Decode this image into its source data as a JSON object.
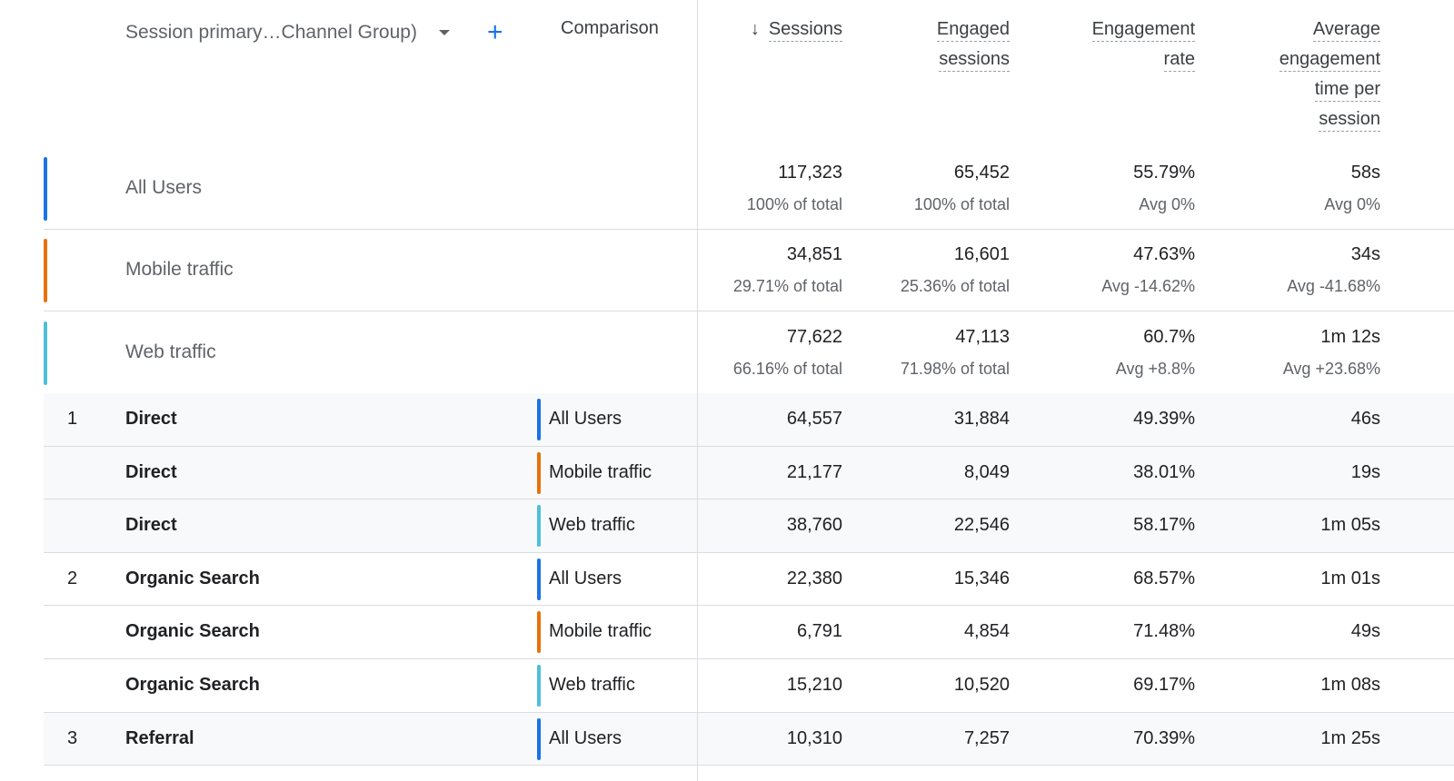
{
  "header": {
    "dimension": "Session primary…Channel Group)",
    "comparison": "Comparison",
    "columns": [
      "Sessions",
      "Engaged sessions",
      "Engagement rate",
      "Average engagement time per session"
    ],
    "sort_icon": "arrow-down-icon"
  },
  "colors": {
    "all_users": "#1a73e8",
    "mobile": "#e8710a",
    "web": "#4ec0d6"
  },
  "summary": [
    {
      "label": "All Users",
      "color": "#1a73e8",
      "values": [
        "117,323",
        "65,452",
        "55.79%",
        "58s"
      ],
      "subs": [
        "100% of total",
        "100% of total",
        "Avg 0%",
        "Avg 0%"
      ]
    },
    {
      "label": "Mobile traffic",
      "color": "#e8710a",
      "values": [
        "34,851",
        "16,601",
        "47.63%",
        "34s"
      ],
      "subs": [
        "29.71% of total",
        "25.36% of total",
        "Avg -14.62%",
        "Avg -41.68%"
      ]
    },
    {
      "label": "Web traffic",
      "color": "#4ec0d6",
      "values": [
        "77,622",
        "47,113",
        "60.7%",
        "1m 12s"
      ],
      "subs": [
        "66.16% of total",
        "71.98% of total",
        "Avg +8.8%",
        "Avg +23.68%"
      ]
    }
  ],
  "rows": [
    {
      "index": "1",
      "channel": "Direct",
      "comparison": "All Users",
      "color": "#1a73e8",
      "values": [
        "64,557",
        "31,884",
        "49.39%",
        "46s"
      ],
      "shaded": true
    },
    {
      "index": "",
      "channel": "Direct",
      "comparison": "Mobile traffic",
      "color": "#e8710a",
      "values": [
        "21,177",
        "8,049",
        "38.01%",
        "19s"
      ],
      "shaded": true
    },
    {
      "index": "",
      "channel": "Direct",
      "comparison": "Web traffic",
      "color": "#4ec0d6",
      "values": [
        "38,760",
        "22,546",
        "58.17%",
        "1m 05s"
      ],
      "shaded": true
    },
    {
      "index": "2",
      "channel": "Organic Search",
      "comparison": "All Users",
      "color": "#1a73e8",
      "values": [
        "22,380",
        "15,346",
        "68.57%",
        "1m 01s"
      ],
      "shaded": false
    },
    {
      "index": "",
      "channel": "Organic Search",
      "comparison": "Mobile traffic",
      "color": "#e8710a",
      "values": [
        "6,791",
        "4,854",
        "71.48%",
        "49s"
      ],
      "shaded": false
    },
    {
      "index": "",
      "channel": "Organic Search",
      "comparison": "Web traffic",
      "color": "#4ec0d6",
      "values": [
        "15,210",
        "10,520",
        "69.17%",
        "1m 08s"
      ],
      "shaded": false
    },
    {
      "index": "3",
      "channel": "Referral",
      "comparison": "All Users",
      "color": "#1a73e8",
      "values": [
        "10,310",
        "7,257",
        "70.39%",
        "1m 25s"
      ],
      "shaded": true
    }
  ]
}
